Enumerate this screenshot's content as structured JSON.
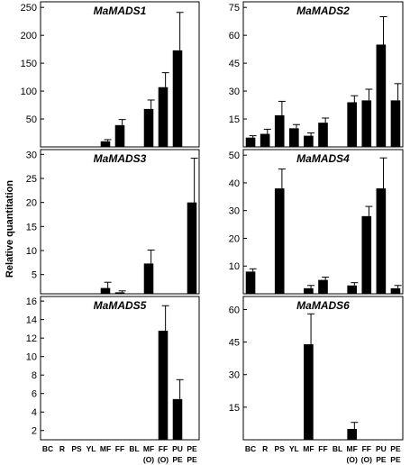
{
  "figure": {
    "ylabel": "Relative quantitation"
  },
  "chart_data": [
    {
      "type": "bar",
      "title": "MaMADS1",
      "categories": [
        "BC",
        "R",
        "PS",
        "YL",
        "MF",
        "FF",
        "BL",
        "MF (O)",
        "FF (O)",
        "PU PE",
        "PE PE"
      ],
      "values": [
        0,
        0,
        0,
        0,
        10,
        39,
        0,
        68,
        107,
        173,
        0
      ],
      "errors": [
        0,
        0,
        0,
        0,
        3,
        10,
        0,
        16,
        26,
        68,
        0
      ],
      "ylim": [
        0,
        260
      ],
      "yticks": [
        50,
        100,
        150,
        200,
        250
      ],
      "show_xticklabels": false
    },
    {
      "type": "bar",
      "title": "MaMADS2",
      "categories": [
        "BC",
        "R",
        "PS",
        "YL",
        "MF",
        "FF",
        "BL",
        "MF (O)",
        "FF (O)",
        "PU PE",
        "PE PE"
      ],
      "values": [
        5,
        7,
        17,
        10,
        6,
        13,
        0,
        24,
        25,
        55,
        25
      ],
      "errors": [
        1,
        2.5,
        7.5,
        2,
        1.5,
        2.5,
        0,
        3.5,
        6,
        15,
        9
      ],
      "ylim": [
        0,
        78
      ],
      "yticks": [
        15,
        30,
        45,
        60,
        75
      ],
      "show_xticklabels": false
    },
    {
      "type": "bar",
      "title": "MaMADS3",
      "categories": [
        "BC",
        "R",
        "PS",
        "YL",
        "MF",
        "FF",
        "BL",
        "MF (O)",
        "FF (O)",
        "PU PE",
        "PE PE"
      ],
      "values": [
        0,
        0,
        0,
        0,
        2.2,
        1.3,
        0,
        7.3,
        0,
        0,
        20
      ],
      "errors": [
        0,
        0,
        0,
        0,
        1.2,
        0.3,
        0,
        2.8,
        0,
        0,
        9.2
      ],
      "ylim": [
        1,
        31
      ],
      "yticks": [
        5,
        10,
        15,
        20,
        25,
        30
      ],
      "show_xticklabels": false
    },
    {
      "type": "bar",
      "title": "MaMADS4",
      "categories": [
        "BC",
        "R",
        "PS",
        "YL",
        "MF",
        "FF",
        "BL",
        "MF (O)",
        "FF (O)",
        "PU PE",
        "PE PE"
      ],
      "values": [
        8,
        0,
        38,
        0,
        2,
        5,
        0,
        3,
        28,
        38,
        2
      ],
      "errors": [
        1,
        0,
        7,
        0,
        1,
        1,
        0,
        1,
        3.5,
        11,
        1
      ],
      "ylim": [
        0,
        52
      ],
      "yticks": [
        10,
        20,
        30,
        40,
        50
      ],
      "show_xticklabels": false
    },
    {
      "type": "bar",
      "title": "MaMADS5",
      "categories": [
        "BC",
        "R",
        "PS",
        "YL",
        "MF",
        "FF",
        "BL",
        "MF (O)",
        "FF (O)",
        "PU PE",
        "PE PE"
      ],
      "values": [
        0,
        0,
        0,
        0,
        0,
        0,
        0,
        0,
        12.8,
        5.4,
        0
      ],
      "errors": [
        0,
        0,
        0,
        0,
        0,
        0,
        0,
        0,
        2.7,
        2.1,
        0
      ],
      "ylim": [
        1,
        16.5
      ],
      "yticks": [
        2,
        4,
        6,
        8,
        10,
        12,
        14,
        16
      ],
      "show_xticklabels": true
    },
    {
      "type": "bar",
      "title": "MaMADS6",
      "categories": [
        "BC",
        "R",
        "PS",
        "YL",
        "MF",
        "FF",
        "BL",
        "MF (O)",
        "FF (O)",
        "PU PE",
        "PE PE"
      ],
      "values": [
        0,
        0,
        0,
        0,
        44,
        0,
        0,
        5,
        0,
        0,
        0
      ],
      "errors": [
        0,
        0,
        0,
        0,
        14,
        0,
        0,
        3,
        0,
        0,
        0
      ],
      "ylim": [
        0,
        66
      ],
      "yticks": [
        15,
        30,
        45,
        60
      ],
      "show_xticklabels": true
    }
  ]
}
